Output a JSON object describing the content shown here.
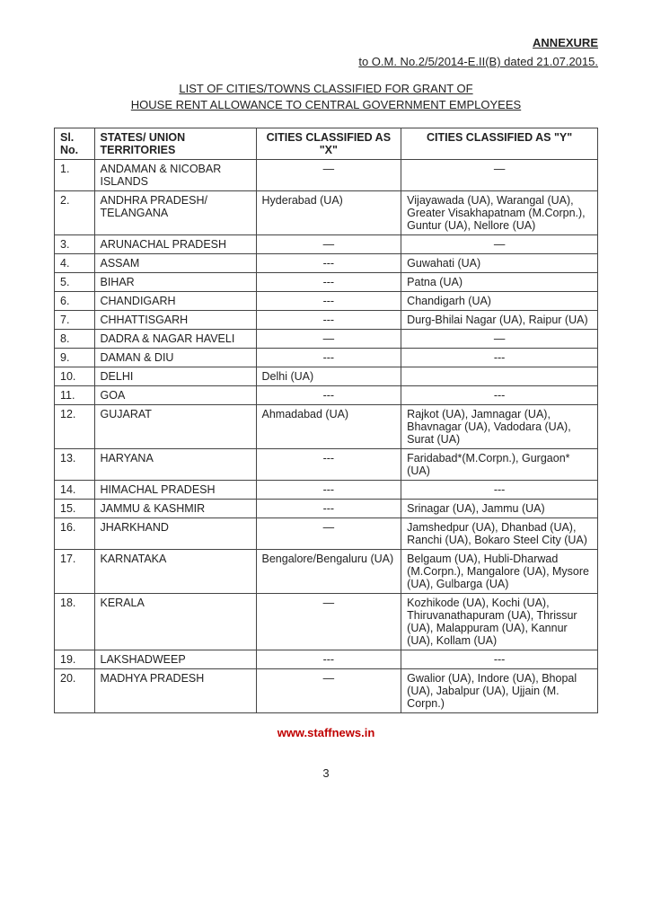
{
  "header": {
    "annexure": "ANNEXURE",
    "ref": "to O.M. No.2/5/2014-E.II(B) dated 21.07.2015.",
    "title_line1": "LIST OF CITIES/TOWNS CLASSIFIED FOR GRANT OF",
    "title_line2": "HOUSE RENT ALLOWANCE TO CENTRAL GOVERNMENT EMPLOYEES"
  },
  "columns": {
    "sl": "Sl. No.",
    "state": "STATES/ UNION TERRITORIES",
    "x": "CITIES CLASSIFIED AS \"X\"",
    "y": "CITIES CLASSIFIED AS \"Y\""
  },
  "rows": [
    {
      "sl": "1.",
      "state": "ANDAMAN & NICOBAR ISLANDS",
      "x": "—",
      "y": "—"
    },
    {
      "sl": "2.",
      "state": "ANDHRA PRADESH/ TELANGANA",
      "x": "Hyderabad (UA)",
      "y": "Vijayawada (UA), Warangal (UA), Greater Visakhapatnam (M.Corpn.), Guntur (UA), Nellore (UA)"
    },
    {
      "sl": "3.",
      "state": "ARUNACHAL PRADESH",
      "x": "—",
      "y": "—"
    },
    {
      "sl": "4.",
      "state": "ASSAM",
      "x": "---",
      "y": "Guwahati (UA)"
    },
    {
      "sl": "5.",
      "state": "BIHAR",
      "x": "---",
      "y": "Patna (UA)"
    },
    {
      "sl": "6.",
      "state": "CHANDIGARH",
      "x": "---",
      "y": "Chandigarh (UA)"
    },
    {
      "sl": "7.",
      "state": "CHHATTISGARH",
      "x": "---",
      "y": "Durg-Bhilai Nagar (UA), Raipur (UA)"
    },
    {
      "sl": "8.",
      "state": "DADRA & NAGAR HAVELI",
      "x": "—",
      "y": "—"
    },
    {
      "sl": "9.",
      "state": "DAMAN & DIU",
      "x": "---",
      "y": "---"
    },
    {
      "sl": "10.",
      "state": "DELHI",
      "x": "Delhi (UA)",
      "y": ""
    },
    {
      "sl": "11.",
      "state": "GOA",
      "x": "---",
      "y": "---"
    },
    {
      "sl": "12.",
      "state": "GUJARAT",
      "x": "Ahmadabad (UA)",
      "y": "Rajkot (UA), Jamnagar (UA), Bhavnagar (UA), Vadodara (UA), Surat (UA)"
    },
    {
      "sl": "13.",
      "state": "HARYANA",
      "x": "---",
      "y": "Faridabad*(M.Corpn.), Gurgaon*(UA)"
    },
    {
      "sl": "14.",
      "state": "HIMACHAL PRADESH",
      "x": "---",
      "y": "---"
    },
    {
      "sl": "15.",
      "state": "JAMMU & KASHMIR",
      "x": "---",
      "y": "Srinagar (UA), Jammu (UA)"
    },
    {
      "sl": "16.",
      "state": "JHARKHAND",
      "x": "—",
      "y": "Jamshedpur (UA), Dhanbad (UA), Ranchi (UA), Bokaro Steel City (UA)"
    },
    {
      "sl": "17.",
      "state": "KARNATAKA",
      "x": "Bengalore/Bengaluru (UA)",
      "y": "Belgaum (UA), Hubli-Dharwad (M.Corpn.), Mangalore (UA), Mysore (UA), Gulbarga (UA)"
    },
    {
      "sl": "18.",
      "state": "KERALA",
      "x": "—",
      "y": "Kozhikode (UA), Kochi (UA), Thiruvanathapuram (UA), Thrissur (UA), Malappuram (UA), Kannur (UA), Kollam (UA)"
    },
    {
      "sl": "19.",
      "state": "LAKSHADWEEP",
      "x": "---",
      "y": "---"
    },
    {
      "sl": "20.",
      "state": "MADHYA PRADESH",
      "x": "—",
      "y": "Gwalior (UA), Indore (UA), Bhopal (UA), Jabalpur (UA), Ujjain (M. Corpn.)"
    }
  ],
  "footer": {
    "link": "www.staffnews.in",
    "page": "3"
  }
}
